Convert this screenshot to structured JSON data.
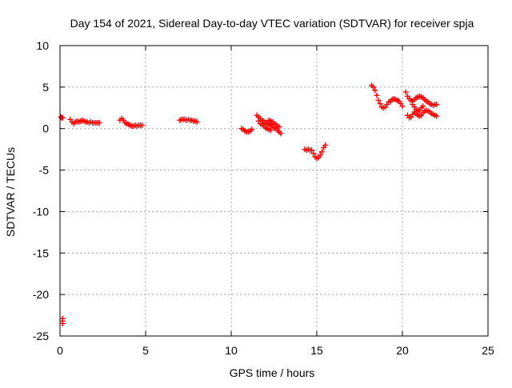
{
  "chart_data": {
    "type": "scatter",
    "title": "Day 154 of 2021, Sidereal Day-to-day VTEC variation (SDTVAR) for receiver spja",
    "xlabel": "GPS time / hours",
    "ylabel": "SDTVAR / TECUs",
    "xlim": [
      0,
      25
    ],
    "ylim": [
      -25,
      10
    ],
    "xticks": [
      0,
      5,
      10,
      15,
      20,
      25
    ],
    "yticks": [
      10,
      5,
      0,
      -5,
      -10,
      -15,
      -20,
      -25
    ],
    "grid": true,
    "marker": "+",
    "colors": {
      "series": "#ff0000",
      "grid": "#a0a0a0",
      "axes": "#000000"
    },
    "series": [
      {
        "name": "spja",
        "segments": [
          [
            [
              0.05,
              1.4
            ],
            [
              0.1,
              1.3
            ],
            [
              0.15,
              1.3
            ]
          ],
          [
            [
              0.6,
              1.1
            ],
            [
              0.7,
              0.8
            ],
            [
              0.8,
              0.6
            ],
            [
              0.9,
              0.8
            ],
            [
              1.0,
              0.9
            ],
            [
              1.1,
              0.8
            ],
            [
              1.2,
              0.9
            ],
            [
              1.3,
              1.0
            ],
            [
              1.4,
              0.9
            ],
            [
              1.5,
              0.8
            ],
            [
              1.6,
              0.8
            ],
            [
              1.7,
              0.7
            ],
            [
              1.8,
              0.8
            ],
            [
              1.9,
              0.7
            ],
            [
              2.0,
              0.7
            ],
            [
              2.1,
              0.7
            ],
            [
              2.2,
              0.7
            ],
            [
              2.3,
              0.7
            ]
          ],
          [
            [
              3.5,
              1.0
            ],
            [
              3.6,
              1.2
            ],
            [
              3.7,
              1.0
            ],
            [
              3.8,
              0.7
            ],
            [
              3.9,
              0.6
            ],
            [
              4.0,
              0.5
            ],
            [
              4.1,
              0.4
            ],
            [
              4.2,
              0.3
            ],
            [
              4.3,
              0.3
            ],
            [
              4.4,
              0.4
            ],
            [
              4.5,
              0.3
            ],
            [
              4.6,
              0.4
            ],
            [
              4.7,
              0.4
            ],
            [
              4.8,
              0.4
            ]
          ],
          [
            [
              7.0,
              1.0
            ],
            [
              7.1,
              1.1
            ],
            [
              7.2,
              1.1
            ],
            [
              7.3,
              1.1
            ],
            [
              7.4,
              1.0
            ],
            [
              7.5,
              1.1
            ],
            [
              7.6,
              1.0
            ],
            [
              7.7,
              1.0
            ],
            [
              7.8,
              0.9
            ],
            [
              7.9,
              0.9
            ],
            [
              8.0,
              0.8
            ]
          ],
          [
            [
              10.6,
              0.0
            ],
            [
              10.7,
              -0.1
            ],
            [
              10.8,
              -0.3
            ],
            [
              10.9,
              -0.4
            ],
            [
              11.0,
              -0.4
            ],
            [
              11.1,
              -0.3
            ],
            [
              11.2,
              -0.1
            ]
          ],
          [
            [
              11.5,
              1.6
            ],
            [
              11.6,
              1.4
            ],
            [
              11.7,
              1.2
            ],
            [
              11.8,
              1.0
            ],
            [
              11.9,
              0.9
            ],
            [
              12.0,
              0.7
            ],
            [
              12.1,
              0.6
            ],
            [
              12.2,
              0.5
            ],
            [
              12.3,
              0.4
            ],
            [
              12.4,
              0.3
            ],
            [
              12.5,
              0.1
            ],
            [
              12.6,
              0.0
            ],
            [
              12.7,
              -0.2
            ],
            [
              12.8,
              -0.4
            ],
            [
              12.9,
              -0.6
            ]
          ],
          [
            [
              11.6,
              0.9
            ],
            [
              11.7,
              0.6
            ],
            [
              11.8,
              0.5
            ],
            [
              11.9,
              0.3
            ],
            [
              12.0,
              0.1
            ],
            [
              12.1,
              0.0
            ],
            [
              12.2,
              -0.1
            ],
            [
              12.3,
              -0.2
            ]
          ],
          [
            [
              12.2,
              1.0
            ],
            [
              12.3,
              0.9
            ],
            [
              12.4,
              0.8
            ],
            [
              12.5,
              0.6
            ],
            [
              12.6,
              0.5
            ],
            [
              12.7,
              0.3
            ],
            [
              12.8,
              0.2
            ]
          ],
          [
            [
              14.3,
              -2.5
            ],
            [
              14.4,
              -2.6
            ],
            [
              14.5,
              -2.5
            ],
            [
              14.6,
              -2.6
            ],
            [
              14.7,
              -2.6
            ],
            [
              14.8,
              -3.0
            ],
            [
              14.9,
              -3.4
            ],
            [
              15.0,
              -3.6
            ],
            [
              15.1,
              -3.5
            ],
            [
              15.2,
              -3.2
            ],
            [
              15.3,
              -2.8
            ],
            [
              15.4,
              -2.3
            ],
            [
              15.5,
              -2.0
            ]
          ],
          [
            [
              18.2,
              5.2
            ],
            [
              18.3,
              5.0
            ],
            [
              18.4,
              4.6
            ],
            [
              18.5,
              4.0
            ],
            [
              18.6,
              3.4
            ],
            [
              18.7,
              3.0
            ],
            [
              18.8,
              2.6
            ],
            [
              18.9,
              2.5
            ],
            [
              19.0,
              2.6
            ],
            [
              19.1,
              2.9
            ],
            [
              19.2,
              3.2
            ],
            [
              19.3,
              3.3
            ],
            [
              19.4,
              3.5
            ],
            [
              19.5,
              3.6
            ],
            [
              19.6,
              3.5
            ],
            [
              19.7,
              3.4
            ],
            [
              19.8,
              3.3
            ],
            [
              19.9,
              3.0
            ],
            [
              20.0,
              2.7
            ]
          ],
          [
            [
              20.2,
              4.4
            ],
            [
              20.3,
              3.9
            ],
            [
              20.4,
              3.6
            ],
            [
              20.5,
              3.4
            ],
            [
              20.6,
              3.3
            ],
            [
              20.7,
              3.5
            ],
            [
              20.8,
              3.7
            ],
            [
              20.9,
              3.8
            ],
            [
              21.0,
              3.9
            ],
            [
              21.1,
              3.8
            ],
            [
              21.2,
              3.7
            ],
            [
              21.3,
              3.5
            ],
            [
              21.4,
              3.3
            ],
            [
              21.5,
              3.2
            ],
            [
              21.6,
              3.0
            ],
            [
              21.7,
              2.9
            ],
            [
              21.8,
              2.8
            ],
            [
              21.9,
              2.9
            ],
            [
              22.0,
              2.9
            ]
          ],
          [
            [
              20.3,
              1.6
            ],
            [
              20.4,
              1.3
            ],
            [
              20.5,
              1.4
            ],
            [
              20.6,
              1.7
            ],
            [
              20.7,
              2.0
            ],
            [
              20.8,
              1.8
            ],
            [
              20.9,
              1.6
            ],
            [
              21.0,
              1.5
            ],
            [
              21.1,
              1.6
            ],
            [
              21.2,
              1.9
            ],
            [
              21.3,
              2.1
            ],
            [
              21.4,
              2.2
            ],
            [
              21.5,
              2.1
            ],
            [
              21.6,
              2.0
            ],
            [
              21.7,
              1.8
            ],
            [
              21.8,
              1.7
            ],
            [
              21.9,
              1.6
            ],
            [
              22.0,
              1.5
            ]
          ],
          [
            [
              20.6,
              2.9
            ],
            [
              20.7,
              2.6
            ],
            [
              20.8,
              2.3
            ],
            [
              20.9,
              2.1
            ],
            [
              21.0,
              2.2
            ],
            [
              21.1,
              2.5
            ],
            [
              21.2,
              2.7
            ]
          ],
          [
            [
              0.15,
              -22.9
            ],
            [
              0.15,
              -23.2
            ],
            [
              0.15,
              -23.5
            ]
          ]
        ]
      }
    ]
  }
}
